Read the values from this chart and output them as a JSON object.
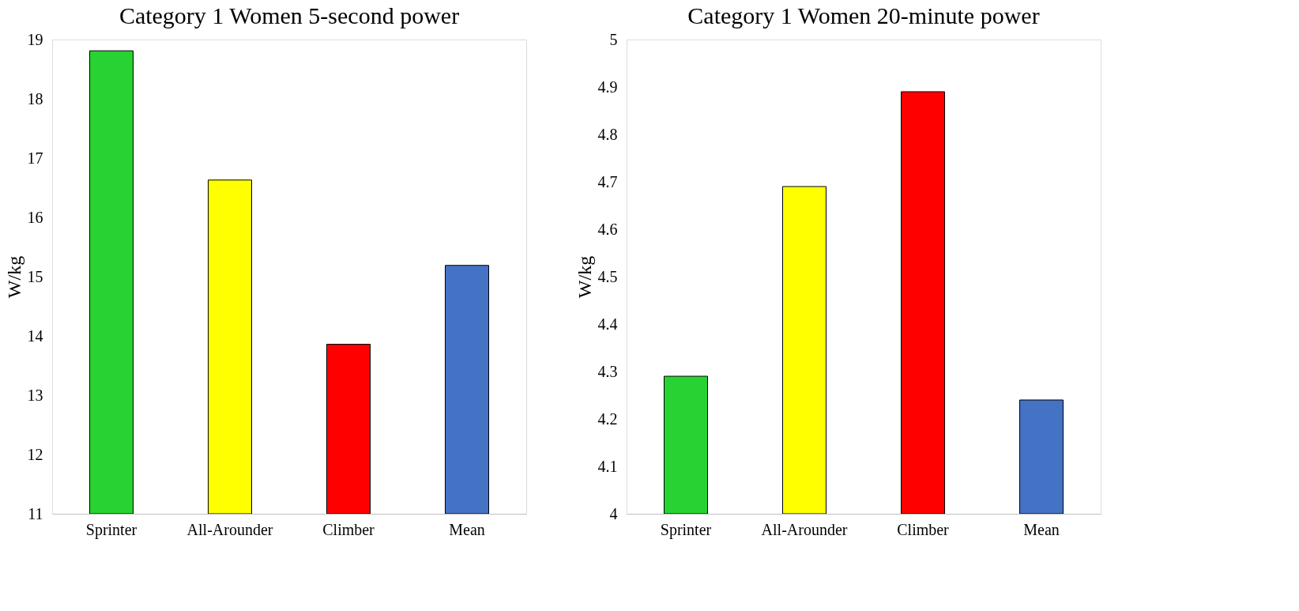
{
  "chart_data": [
    {
      "type": "bar",
      "title": "Category 1 Women 5-second power",
      "ylabel": "W/kg",
      "categories": [
        "Sprinter",
        "All-Arounder",
        "Climber",
        "Mean"
      ],
      "values": [
        18.81,
        16.63,
        13.86,
        15.19
      ],
      "colors": [
        "#28d232",
        "#ffff00",
        "#ff0000",
        "#4472c4"
      ],
      "ylim": [
        11,
        19
      ],
      "yticks": [
        11,
        12,
        13,
        14,
        15,
        16,
        17,
        18,
        19
      ],
      "grid": false
    },
    {
      "type": "bar",
      "title": "Category 1 Women 20-minute power",
      "ylabel": "W/kg",
      "categories": [
        "Sprinter",
        "All-Arounder",
        "Climber",
        "Mean"
      ],
      "values": [
        4.29,
        4.69,
        4.89,
        4.24
      ],
      "colors": [
        "#28d232",
        "#ffff00",
        "#ff0000",
        "#4472c4"
      ],
      "ylim": [
        4,
        5
      ],
      "yticks": [
        4,
        4.1,
        4.2,
        4.3,
        4.4,
        4.5,
        4.6,
        4.7,
        4.8,
        4.9,
        5
      ],
      "grid": false
    }
  ]
}
